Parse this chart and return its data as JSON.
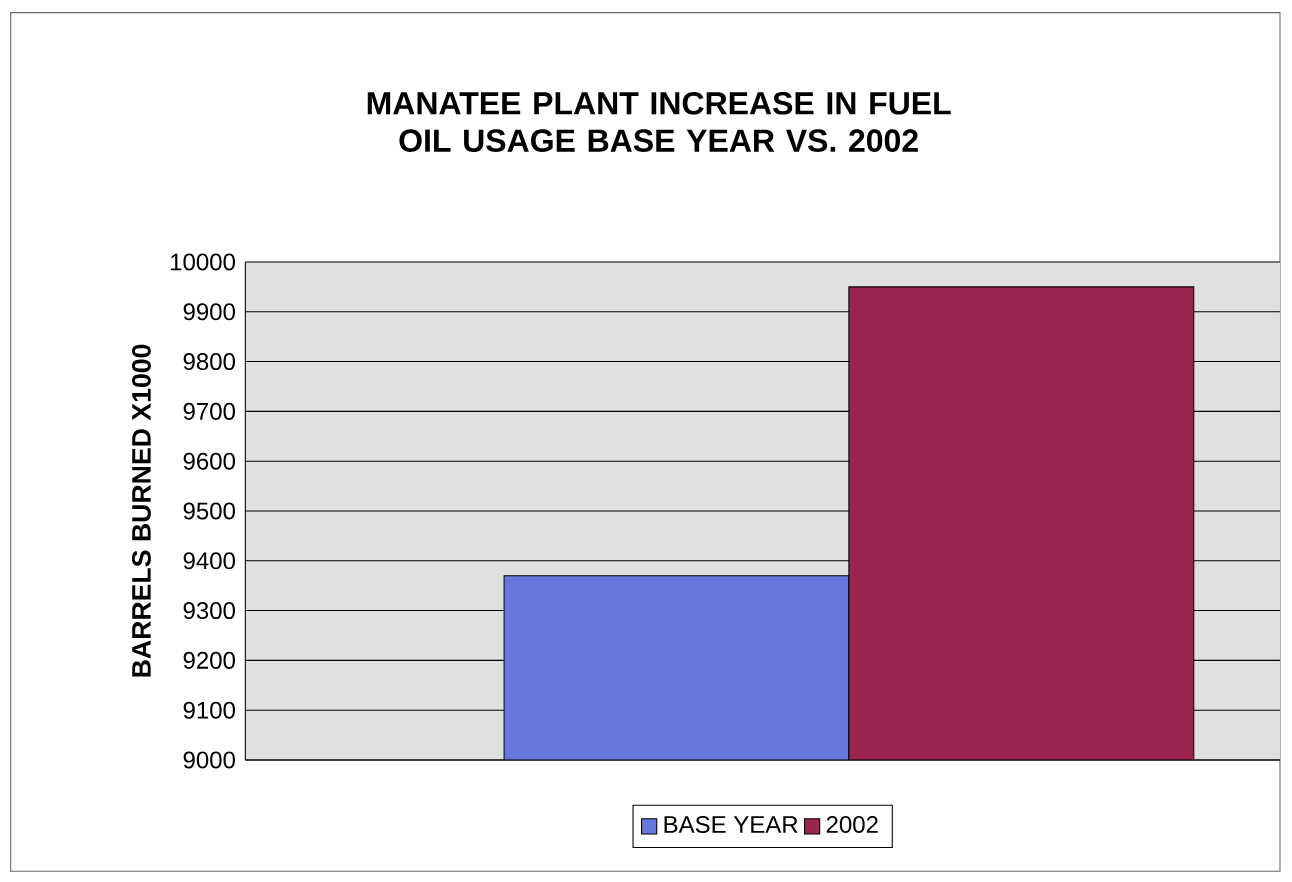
{
  "chart_data": {
    "type": "bar",
    "title": "MANATEE PLANT INCREASE IN FUEL OIL USAGE BASE YEAR VS. 2002",
    "ylabel": "BARRELS BURNED X1000",
    "categories": [
      null
    ],
    "series": [
      {
        "name": "BASE YEAR",
        "color": "#6677dd",
        "values": [
          9370
        ]
      },
      {
        "name": "2002",
        "color": "#9c2450",
        "values": [
          9950
        ]
      }
    ],
    "ylim": [
      9000,
      10000
    ],
    "yticks": [
      9000,
      9100,
      9200,
      9300,
      9400,
      9500,
      9600,
      9700,
      9800,
      9900,
      10000
    ],
    "grid": "y",
    "legend": "bottom"
  }
}
